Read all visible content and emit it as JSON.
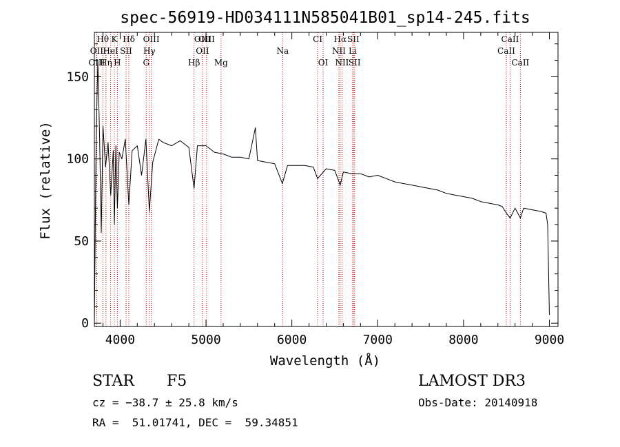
{
  "chart_data": {
    "type": "line",
    "title": "spec-56919-HD034111N585041B01_sp14-245.fits",
    "xlabel": "Wavelength (Å)",
    "ylabel": "Flux (relative)",
    "xlim": [
      3700,
      9100
    ],
    "ylim": [
      -2,
      177
    ],
    "xticks": [
      4000,
      5000,
      6000,
      7000,
      8000,
      9000
    ],
    "yticks": [
      0,
      50,
      100,
      150
    ],
    "xtick_labels": [
      "4000",
      "5000",
      "6000",
      "7000",
      "8000",
      "9000"
    ],
    "ytick_labels": [
      "0",
      "50",
      "100",
      "150"
    ],
    "series": [
      {
        "name": "spectrum",
        "x": [
          3700,
          3720,
          3740,
          3760,
          3780,
          3800,
          3830,
          3860,
          3890,
          3920,
          3933,
          3950,
          3968,
          3990,
          4020,
          4060,
          4101,
          4140,
          4200,
          4250,
          4300,
          4340,
          4380,
          4450,
          4500,
          4600,
          4700,
          4800,
          4861,
          4900,
          5000,
          5100,
          5200,
          5300,
          5400,
          5500,
          5575,
          5600,
          5700,
          5800,
          5890,
          5950,
          6050,
          6150,
          6250,
          6300,
          6400,
          6500,
          6563,
          6600,
          6700,
          6800,
          6900,
          7000,
          7100,
          7200,
          7300,
          7400,
          7500,
          7600,
          7700,
          7800,
          7900,
          8000,
          8100,
          8200,
          8300,
          8400,
          8450,
          8498,
          8542,
          8600,
          8662,
          8700,
          8800,
          8900,
          8960,
          8980,
          9000
        ],
        "values": [
          0,
          110,
          160,
          115,
          55,
          120,
          95,
          110,
          78,
          105,
          60,
          108,
          70,
          104,
          100,
          112,
          72,
          105,
          108,
          90,
          112,
          68,
          98,
          112,
          110,
          108,
          111,
          107,
          82,
          108,
          108,
          104,
          103,
          101,
          101,
          100,
          119,
          99,
          98,
          97,
          85,
          96,
          96,
          96,
          95,
          88,
          94,
          93,
          84,
          92,
          91,
          91,
          89,
          90,
          88,
          86,
          85,
          84,
          83,
          82,
          81,
          79,
          78,
          77,
          76,
          74,
          73,
          72,
          71,
          67,
          64,
          70,
          64,
          70,
          69,
          68,
          67,
          60,
          5
        ]
      }
    ],
    "line_marks": [
      {
        "label": "Hθ",
        "x": 3798
      },
      {
        "label": "K",
        "x": 3933
      },
      {
        "label": "Hδ",
        "x": 4101
      },
      {
        "label": "OIII",
        "x": 4363
      },
      {
        "label": "OIII",
        "x": 4959
      },
      {
        "label": "OIII",
        "x": 5007
      },
      {
        "label": "CI",
        "x": 6300
      },
      {
        "label": "Hα",
        "x": 6563
      },
      {
        "label": "SII",
        "x": 6716
      },
      {
        "label": "CaII",
        "x": 8542
      },
      {
        "label": "OII",
        "x": 3727
      },
      {
        "label": "HeI",
        "x": 3889
      },
      {
        "label": "SII",
        "x": 4069
      },
      {
        "label": "Hγ",
        "x": 4340
      },
      {
        "label": "OII",
        "x": 4959
      },
      {
        "label": "Na",
        "x": 5893
      },
      {
        "label": "NII",
        "x": 6548
      },
      {
        "label": "Li",
        "x": 6708
      },
      {
        "label": "CaII",
        "x": 8498
      },
      {
        "label": "OIII",
        "x": 3727
      },
      {
        "label": "Hη",
        "x": 3835
      },
      {
        "label": "H",
        "x": 3968
      },
      {
        "label": "G",
        "x": 4304
      },
      {
        "label": "Hβ",
        "x": 4861
      },
      {
        "label": "Mg",
        "x": 5175
      },
      {
        "label": "OI",
        "x": 6364
      },
      {
        "label": "NII",
        "x": 6584
      },
      {
        "label": "SII",
        "x": 6731
      },
      {
        "label": "CaII",
        "x": 8662
      }
    ]
  },
  "info": {
    "object_class": "STAR",
    "subclass": "F5",
    "survey": "LAMOST DR3",
    "cz": "cz = −38.7 ± 25.8 km/s",
    "obs_date": "Obs-Date: 20140918",
    "coords": "RA =  51.01741, DEC =  59.34851"
  },
  "colors": {
    "line_marker": "#c00000",
    "spectrum": "#000000"
  }
}
